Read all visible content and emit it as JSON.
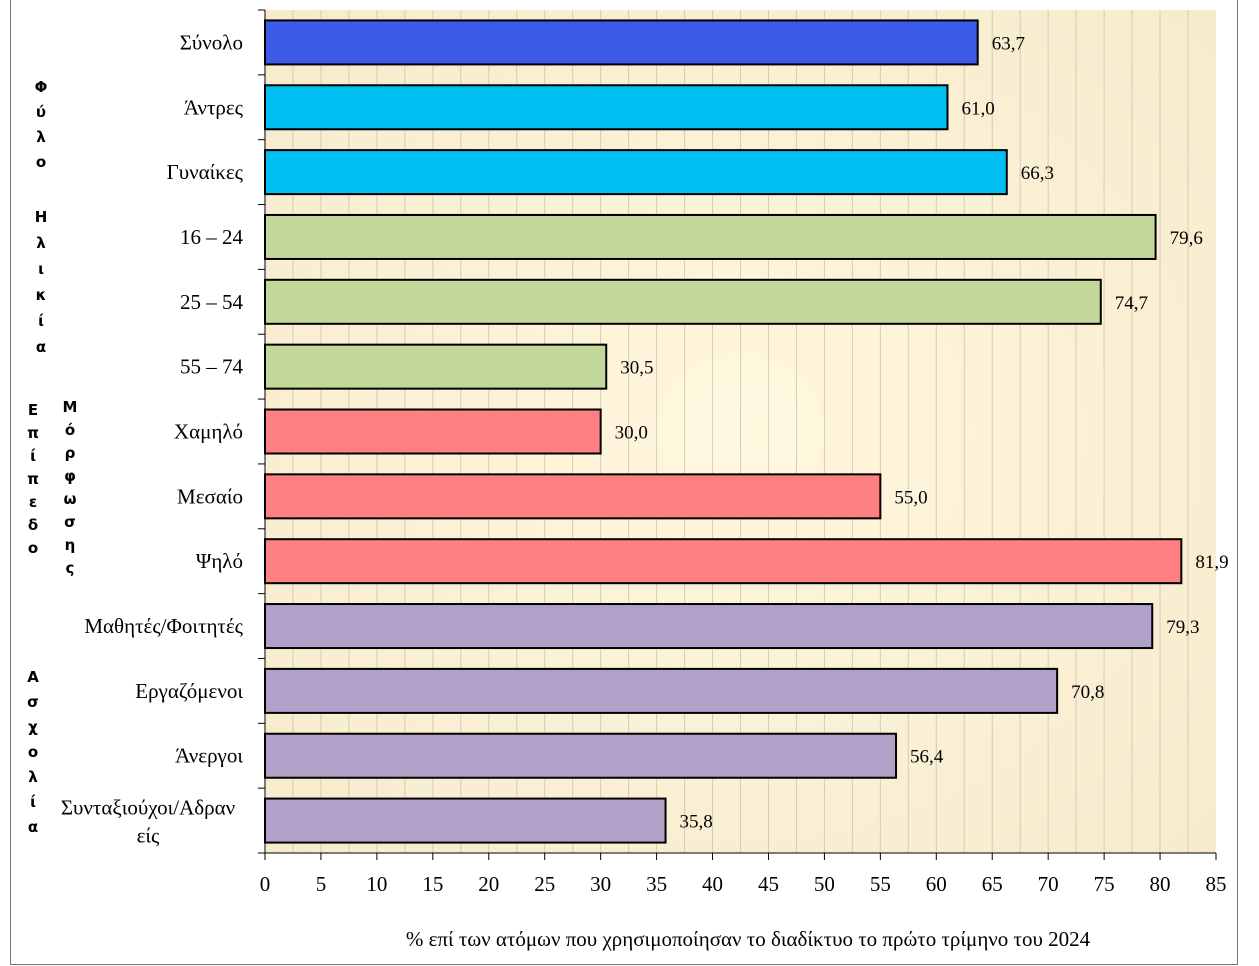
{
  "chart_data": {
    "type": "bar",
    "orientation": "horizontal",
    "categories": [
      "Σύνολο",
      "Άντρες",
      "Γυναίκες",
      "16 – 24",
      "25 – 54",
      "55 – 74",
      "Χαμηλό",
      "Μεσαίο",
      "Ψηλό",
      "Μαθητές/Φοιτητές",
      "Εργαζόμενοι",
      "Άνεργοι",
      "Συνταξιούχοι/Αδρανείς"
    ],
    "category_lines": [
      [
        "Σύνολο"
      ],
      [
        "Άντρες"
      ],
      [
        "Γυναίκες"
      ],
      [
        "16 – 24"
      ],
      [
        "25 – 54"
      ],
      [
        "55 – 74"
      ],
      [
        "Χαμηλό"
      ],
      [
        "Μεσαίο"
      ],
      [
        "Ψηλό"
      ],
      [
        "Μαθητές/Φοιτητές"
      ],
      [
        "Εργαζόμενοι"
      ],
      [
        "Άνεργοι"
      ],
      [
        "Συνταξιούχοι/Αδραν",
        "είς"
      ]
    ],
    "values": [
      63.7,
      61.0,
      66.3,
      79.6,
      74.7,
      30.5,
      30.0,
      55.0,
      81.9,
      79.3,
      70.8,
      56.4,
      35.8
    ],
    "value_labels": [
      "63,7",
      "61,0",
      "66,3",
      "79,6",
      "74,7",
      "30,5",
      "30,0",
      "55,0",
      "81,9",
      "79,3",
      "70,8",
      "56,4",
      "35,8"
    ],
    "bar_colors": [
      "#3C5BE8",
      "#00BFF2",
      "#00BFF2",
      "#C4D79B",
      "#C4D79B",
      "#C4D79B",
      "#FF8080",
      "#FF8080",
      "#FF8080",
      "#B1A0C7",
      "#B1A0C7",
      "#B1A0C7",
      "#B1A0C7"
    ],
    "groups": [
      {
        "label_chars": [
          "Φ",
          "ύ",
          "λ",
          "ο"
        ],
        "rows": [
          0,
          2
        ]
      },
      {
        "label_chars": [
          "Η",
          "λ",
          "ι",
          "κ",
          "ί",
          "α"
        ],
        "rows": [
          3,
          5
        ]
      },
      {
        "label_chars": [
          "Ε",
          "π",
          "ί",
          "π",
          "ε",
          "δ",
          "ο"
        ],
        "rows": [
          6,
          8
        ]
      },
      {
        "label_chars": [
          "Μ",
          "ό",
          "ρ",
          "φ",
          "ω",
          "σ",
          "η",
          "ς"
        ],
        "rows": [
          6,
          8
        ]
      },
      {
        "label_chars": [
          "Α",
          "σ",
          "χ",
          "ο",
          "λ",
          "ί",
          "α"
        ],
        "rows": [
          9,
          12
        ]
      }
    ],
    "xlim": [
      0,
      85
    ],
    "xticks": [
      0,
      5,
      10,
      15,
      20,
      25,
      30,
      35,
      40,
      45,
      50,
      55,
      60,
      65,
      70,
      75,
      80,
      85
    ],
    "xlabel": "% επί των ατόμων που χρησιμοποίησαν το διαδίκτυο το πρώτο τρίμηνο του 2024",
    "title": "",
    "grid": "vertical",
    "plot_background": "#FBF3D9"
  }
}
